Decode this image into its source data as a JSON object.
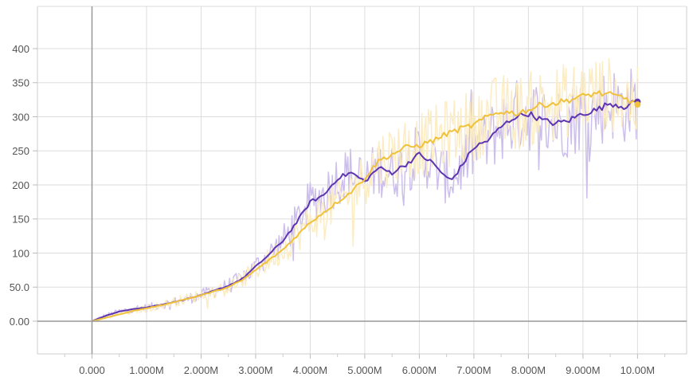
{
  "chart_data": {
    "type": "line",
    "title": "",
    "xlabel": "",
    "ylabel": "",
    "xlim": [
      -1.0,
      10.9
    ],
    "ylim": [
      -48,
      462
    ],
    "grid": true,
    "legend": "none",
    "x_ticks": [
      {
        "v": 0,
        "label": "0.000"
      },
      {
        "v": 1,
        "label": "1.000M"
      },
      {
        "v": 2,
        "label": "2.000M"
      },
      {
        "v": 3,
        "label": "3.000M"
      },
      {
        "v": 4,
        "label": "4.000M"
      },
      {
        "v": 5,
        "label": "5.000M"
      },
      {
        "v": 6,
        "label": "6.000M"
      },
      {
        "v": 7,
        "label": "7.000M"
      },
      {
        "v": 8,
        "label": "8.000M"
      },
      {
        "v": 9,
        "label": "9.000M"
      },
      {
        "v": 10,
        "label": "10.00M"
      }
    ],
    "y_ticks": [
      {
        "v": 0,
        "label": "0.00"
      },
      {
        "v": 50,
        "label": "50.0"
      },
      {
        "v": 100,
        "label": "100"
      },
      {
        "v": 150,
        "label": "150"
      },
      {
        "v": 200,
        "label": "200"
      },
      {
        "v": 250,
        "label": "250"
      },
      {
        "v": 300,
        "label": "300"
      },
      {
        "v": 350,
        "label": "350"
      },
      {
        "v": 400,
        "label": "400"
      }
    ],
    "x_unit": "millions of steps",
    "series": [
      {
        "color": "#5e35b1",
        "raw_color": "#cdbfeb",
        "x": [
          0.0,
          0.25,
          0.5,
          0.75,
          1.0,
          1.25,
          1.5,
          1.75,
          2.0,
          2.25,
          2.5,
          2.75,
          3.0,
          3.25,
          3.5,
          3.75,
          4.0,
          4.25,
          4.5,
          4.75,
          5.0,
          5.25,
          5.5,
          5.75,
          6.0,
          6.25,
          6.5,
          6.6,
          6.75,
          7.0,
          7.25,
          7.5,
          7.75,
          8.0,
          8.25,
          8.5,
          8.75,
          9.0,
          9.25,
          9.5,
          9.75,
          10.0
        ],
        "y": [
          0,
          8,
          14,
          18,
          20,
          24,
          28,
          33,
          38,
          45,
          52,
          62,
          80,
          98,
          118,
          145,
          175,
          185,
          210,
          218,
          205,
          225,
          218,
          230,
          245,
          232,
          210,
          208,
          225,
          255,
          265,
          285,
          300,
          305,
          295,
          290,
          295,
          305,
          310,
          320,
          315,
          322
        ]
      },
      {
        "color": "#f0c23b",
        "raw_color": "#fbecc4",
        "x": [
          0.0,
          0.25,
          0.5,
          0.75,
          1.0,
          1.25,
          1.5,
          1.75,
          2.0,
          2.25,
          2.5,
          2.75,
          3.0,
          3.25,
          3.5,
          3.75,
          4.0,
          4.25,
          4.5,
          4.75,
          5.0,
          5.25,
          5.5,
          5.75,
          6.0,
          6.25,
          6.5,
          6.75,
          7.0,
          7.25,
          7.5,
          7.75,
          8.0,
          8.25,
          8.5,
          8.75,
          9.0,
          9.25,
          9.5,
          9.75,
          10.0
        ],
        "y": [
          0,
          5,
          10,
          15,
          19,
          23,
          28,
          33,
          38,
          44,
          50,
          60,
          75,
          90,
          105,
          125,
          145,
          160,
          175,
          190,
          210,
          235,
          245,
          255,
          258,
          265,
          275,
          282,
          288,
          300,
          308,
          305,
          310,
          318,
          320,
          325,
          330,
          335,
          332,
          328,
          318
        ]
      }
    ]
  }
}
